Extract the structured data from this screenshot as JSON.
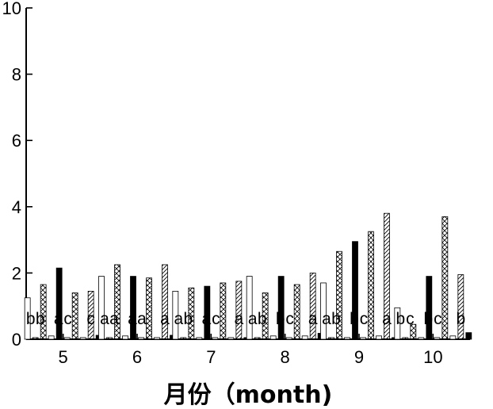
{
  "chart_data": {
    "type": "bar",
    "xlabel": "月份（month)",
    "ylabel": "",
    "ylim": [
      0,
      10
    ],
    "yticks": [
      0,
      2,
      4,
      6,
      8,
      10
    ],
    "categories": [
      "5",
      "6",
      "7",
      "8",
      "9",
      "10"
    ],
    "series": [
      {
        "pattern": "white",
        "values": [
          1.25,
          1.9,
          1.45,
          1.9,
          1.7,
          0.95
        ]
      },
      {
        "pattern": "hatch-right",
        "values": [
          0.05,
          0.05,
          0.05,
          0.05,
          0.05,
          0.05
        ]
      },
      {
        "pattern": "crosshatch",
        "values": [
          1.65,
          2.25,
          1.55,
          1.4,
          2.65,
          0.45
        ]
      },
      {
        "pattern": "white",
        "values": [
          0.1,
          0.1,
          0.05,
          0.1,
          0.05,
          0.05
        ]
      },
      {
        "pattern": "black",
        "values": [
          2.15,
          1.9,
          1.6,
          1.9,
          2.95,
          1.9
        ]
      },
      {
        "pattern": "white",
        "values": [
          0.05,
          0.05,
          0.05,
          0.05,
          0.05,
          0.05
        ]
      },
      {
        "pattern": "crosshatch",
        "values": [
          1.4,
          1.85,
          1.7,
          1.65,
          3.25,
          3.7
        ]
      },
      {
        "pattern": "white",
        "values": [
          0.05,
          0.05,
          0.05,
          0.1,
          0.1,
          0.1
        ]
      },
      {
        "pattern": "hatch-left",
        "values": [
          1.45,
          2.25,
          1.75,
          2.0,
          3.8,
          1.95
        ]
      },
      {
        "pattern": "black",
        "values": [
          0.12,
          0.12,
          0.05,
          0.18,
          0.05,
          0.2
        ]
      }
    ],
    "letters": [
      [
        [
          "b",
          "b"
        ],
        [
          "a",
          "c"
        ],
        [
          "c"
        ]
      ],
      [
        [
          "a",
          "a"
        ],
        [
          "a",
          "a"
        ],
        [
          "a"
        ]
      ],
      [
        [
          "a",
          "b"
        ],
        [
          "a",
          "c"
        ],
        [
          "a"
        ]
      ],
      [
        [
          "a",
          "b"
        ],
        [
          "b",
          "c"
        ],
        [
          "a"
        ]
      ],
      [
        [
          "a",
          "b"
        ],
        [
          "b",
          "c"
        ],
        [
          "a"
        ]
      ],
      [
        [
          "b",
          "c"
        ],
        [
          "b",
          "c"
        ],
        [
          "b"
        ]
      ]
    ]
  }
}
